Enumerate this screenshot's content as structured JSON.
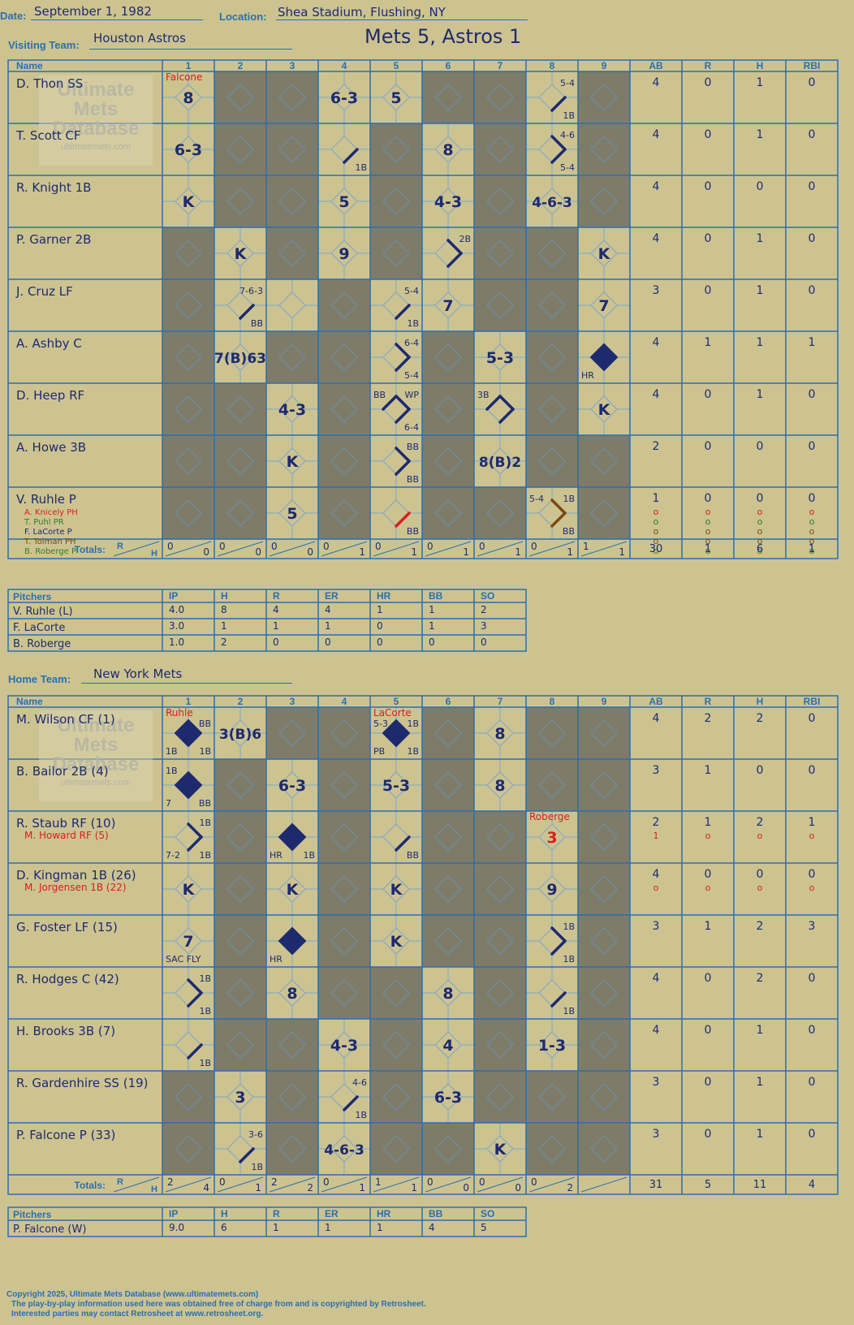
{
  "header": {
    "date_label": "Date:",
    "date": "September 1, 1982",
    "location_label": "Location:",
    "location": "Shea Stadium, Flushing, NY",
    "visiting_label": "Visiting Team:",
    "visiting_team": "Houston Astros",
    "home_label": "Home Team:",
    "home_team": "New York Mets",
    "result": "Mets 5, Astros 1"
  },
  "grid_headers": {
    "name": "Name",
    "innings": [
      "1",
      "2",
      "3",
      "4",
      "5",
      "6",
      "7",
      "8",
      "9"
    ],
    "stats": [
      "AB",
      "R",
      "H",
      "RBI"
    ],
    "totals": "Totals:",
    "r": "R",
    "h": "H"
  },
  "pitch_headers": {
    "pitchers": "Pitchers",
    "cols": [
      "IP",
      "H",
      "R",
      "ER",
      "HR",
      "BB",
      "SO"
    ]
  },
  "watermark": {
    "line1": "Ultimate",
    "line2": "Mets",
    "line3": "Database",
    "url": "ultimatemets.com"
  },
  "colors": {
    "paper": "#cdc391",
    "shade": "#7f7b69",
    "grid": "#2a6fb0",
    "ink": "#1e2a6e",
    "red": "#d81e1e",
    "green": "#2f7d2f",
    "brown": "#7a4a10"
  },
  "visitors": {
    "batters": [
      {
        "name": "D. Thon SS",
        "stats": [
          "4",
          "0",
          "1",
          "0"
        ],
        "cells": {
          "1": {
            "big": "8",
            "top": "Falcone",
            "topColor": "red"
          },
          "4": {
            "big": "6-3"
          },
          "5": {
            "big": "5"
          },
          "8": {
            "seg": [
              1
            ],
            "tr": "5-4",
            "br": "1B"
          }
        }
      },
      {
        "name": "T. Scott CF",
        "stats": [
          "4",
          "0",
          "1",
          "0"
        ],
        "cells": {
          "1": {
            "big": "6-3"
          },
          "4": {
            "seg": [
              1
            ],
            "br": "1B"
          },
          "6": {
            "big": "8"
          },
          "8": {
            "seg": [
              1,
              2
            ],
            "tr": "4-6",
            "br": "5-4"
          }
        }
      },
      {
        "name": "R. Knight 1B",
        "stats": [
          "4",
          "0",
          "0",
          "0"
        ],
        "cells": {
          "1": {
            "big": "K"
          },
          "4": {
            "big": "5"
          },
          "6": {
            "big": "4-3"
          },
          "8": {
            "big": "4-6-3"
          }
        }
      },
      {
        "name": "P. Garner 2B",
        "stats": [
          "4",
          "0",
          "1",
          "0"
        ],
        "cells": {
          "2": {
            "big": "K"
          },
          "4": {
            "big": "9"
          },
          "6": {
            "seg": [
              1,
              2
            ],
            "tr": "2B"
          },
          "9": {
            "big": "K"
          }
        }
      },
      {
        "name": "J. Cruz LF",
        "stats": [
          "3",
          "0",
          "1",
          "0"
        ],
        "cells": {
          "2": {
            "seg": [
              1
            ],
            "tr": "7-6-3",
            "br": "BB"
          },
          "5": {
            "seg": [
              1
            ],
            "tr": "5-4",
            "br": "1B"
          },
          "6": {
            "big": "7"
          },
          "9": {
            "big": "7"
          }
        }
      },
      {
        "name": "A. Ashby C",
        "stats": [
          "4",
          "1",
          "1",
          "1"
        ],
        "cells": {
          "2": {
            "big": "7(B)63"
          },
          "5": {
            "seg": [
              1,
              2
            ],
            "tr": "6-4",
            "br": "5-4"
          },
          "7": {
            "big": "5-3"
          },
          "9": {
            "run": true,
            "bl": "HR"
          }
        }
      },
      {
        "name": "D. Heep RF",
        "stats": [
          "4",
          "0",
          "1",
          "0"
        ],
        "cells": {
          "3": {
            "big": "4-3"
          },
          "5": {
            "seg": [
              1,
              2,
              3
            ],
            "tl": "BB",
            "tr": "WP",
            "br": "6-4"
          },
          "7": {
            "seg": [
              1,
              2,
              3
            ],
            "tl": "3B"
          },
          "9": {
            "big": "K"
          }
        }
      },
      {
        "name": "A. Howe 3B",
        "stats": [
          "2",
          "0",
          "0",
          "0"
        ],
        "cells": {
          "3": {
            "big": "K"
          },
          "5": {
            "seg": [
              1,
              2
            ],
            "tr": "BB",
            "br": "BB"
          },
          "7": {
            "big": "8(B)2"
          }
        }
      },
      {
        "name": "V. Ruhle P",
        "stats": [
          "1",
          "0",
          "0",
          "0"
        ],
        "subs": [
          {
            "t": "A. Knicely PH",
            "c": "red"
          },
          {
            "t": "T. Puhl PR",
            "c": "green"
          },
          {
            "t": "F. LaCorte P",
            "c": "ink"
          },
          {
            "t": "T. Tolman PH",
            "c": "brown"
          },
          {
            "t": "B. Roberge P",
            "c": "green"
          }
        ],
        "substats": [
          [
            "o",
            "o",
            "o",
            "o"
          ],
          [
            "o",
            "o",
            "o",
            "o"
          ],
          [
            "o",
            "o",
            "o",
            "o"
          ],
          [
            "o",
            "o",
            "o",
            "o"
          ],
          [
            "o",
            "o",
            "o",
            "o"
          ]
        ],
        "subColors": [
          "red",
          "green",
          "brown",
          "brown",
          "green"
        ],
        "cells": {
          "3": {
            "big": "5"
          },
          "5": {
            "seg": [
              1
            ],
            "br": "BB",
            "segColor": "red"
          },
          "8": {
            "seg": [
              1,
              2
            ],
            "tl": "5-4",
            "tr": "1B",
            "br": "BB",
            "segColor": "brown"
          }
        }
      }
    ],
    "shaded": [
      [
        2,
        3,
        6,
        7,
        9
      ],
      [
        2,
        3,
        5,
        7,
        9
      ],
      [
        2,
        3,
        5,
        7,
        9
      ],
      [
        1,
        3,
        5,
        7,
        8
      ],
      [
        1,
        4,
        7,
        8
      ],
      [
        1,
        3,
        4,
        6,
        8
      ],
      [
        1,
        2,
        4,
        6,
        8
      ],
      [
        1,
        2,
        4,
        6,
        8,
        9
      ],
      [
        1,
        2,
        4,
        6,
        7,
        9
      ]
    ],
    "totals": {
      "innings": [
        [
          "0",
          "0"
        ],
        [
          "0",
          "0"
        ],
        [
          "0",
          "0"
        ],
        [
          "0",
          "1"
        ],
        [
          "0",
          "1"
        ],
        [
          "0",
          "1"
        ],
        [
          "0",
          "1"
        ],
        [
          "0",
          "1"
        ],
        [
          "1",
          "1"
        ]
      ],
      "stats": [
        "30",
        "1",
        "6",
        "1"
      ]
    },
    "pitchers": [
      {
        "name": "V. Ruhle (L)",
        "stats": [
          "4.0",
          "8",
          "4",
          "4",
          "1",
          "1",
          "2"
        ]
      },
      {
        "name": "F. LaCorte",
        "stats": [
          "3.0",
          "1",
          "1",
          "1",
          "0",
          "1",
          "3"
        ]
      },
      {
        "name": "B. Roberge",
        "stats": [
          "1.0",
          "2",
          "0",
          "0",
          "0",
          "0",
          "0"
        ]
      }
    ]
  },
  "home": {
    "batters": [
      {
        "name": "M. Wilson CF (1)",
        "stats": [
          "4",
          "2",
          "2",
          "0"
        ],
        "cells": {
          "1": {
            "run": true,
            "top": "Ruhle",
            "topColor": "red",
            "tr": "BB",
            "bl": "1B",
            "br": "1B"
          },
          "2": {
            "big": "3(B)6"
          },
          "5": {
            "run": true,
            "top": "LaCorte",
            "topColor": "red",
            "tl": "5-3",
            "tr": "1B",
            "bl": "PB",
            "br": "1B"
          },
          "7": {
            "big": "8"
          }
        }
      },
      {
        "name": "B. Bailor 2B (4)",
        "stats": [
          "3",
          "1",
          "0",
          "0"
        ],
        "cells": {
          "1": {
            "run": true,
            "tl": "1B",
            "bl": "7",
            "br": "BB"
          },
          "3": {
            "big": "6-3"
          },
          "5": {
            "big": "5-3"
          },
          "7": {
            "big": "8"
          }
        }
      },
      {
        "name": "R. Staub RF (10)",
        "stats": [
          "2",
          "1",
          "2",
          "1"
        ],
        "subs": [
          {
            "t": "M. Howard RF (5)",
            "c": "red"
          }
        ],
        "substats": [
          [
            "1",
            "o",
            "o",
            "o"
          ]
        ],
        "subColors": [
          "red"
        ],
        "cells": {
          "1": {
            "seg": [
              1,
              2
            ],
            "tr": "1B",
            "bl": "7-2",
            "br": "1B"
          },
          "3": {
            "run": true,
            "bl": "HR",
            "br": "1B"
          },
          "5": {
            "seg": [
              1
            ],
            "br": "BB"
          },
          "8": {
            "big": "3",
            "top": "Roberge",
            "topColor": "red",
            "bigColor": "red"
          }
        }
      },
      {
        "name": "D. Kingman 1B (26)",
        "stats": [
          "4",
          "0",
          "0",
          "0"
        ],
        "subs": [
          {
            "t": "M. Jorgensen 1B (22)",
            "c": "red"
          }
        ],
        "substats": [
          [
            "o",
            "o",
            "o",
            "o"
          ]
        ],
        "subColors": [
          "red"
        ],
        "cells": {
          "1": {
            "big": "K"
          },
          "3": {
            "big": "K"
          },
          "5": {
            "big": "K"
          },
          "8": {
            "big": "9"
          }
        }
      },
      {
        "name": "G. Foster LF (15)",
        "stats": [
          "3",
          "1",
          "2",
          "3"
        ],
        "cells": {
          "1": {
            "big": "7",
            "bl": "SAC FLY"
          },
          "3": {
            "run": true,
            "bl": "HR"
          },
          "5": {
            "big": "K"
          },
          "8": {
            "seg": [
              1,
              2
            ],
            "tr": "1B",
            "br": "1B"
          }
        }
      },
      {
        "name": "R. Hodges C (42)",
        "stats": [
          "4",
          "0",
          "2",
          "0"
        ],
        "cells": {
          "1": {
            "seg": [
              1,
              2
            ],
            "tr": "1B",
            "br": "1B"
          },
          "3": {
            "big": "8"
          },
          "6": {
            "big": "8"
          },
          "8": {
            "seg": [
              1
            ],
            "br": "1B"
          }
        }
      },
      {
        "name": "H. Brooks 3B (7)",
        "stats": [
          "4",
          "0",
          "1",
          "0"
        ],
        "cells": {
          "1": {
            "seg": [
              1
            ],
            "br": "1B"
          },
          "4": {
            "big": "4-3"
          },
          "6": {
            "big": "4"
          },
          "8": {
            "big": "1-3"
          }
        }
      },
      {
        "name": "R. Gardenhire SS (19)",
        "stats": [
          "3",
          "0",
          "1",
          "0"
        ],
        "cells": {
          "2": {
            "big": "3"
          },
          "4": {
            "seg": [
              1
            ],
            "tr": "4-6",
            "br": "1B"
          },
          "6": {
            "big": "6-3"
          }
        }
      },
      {
        "name": "P. Falcone P (33)",
        "stats": [
          "3",
          "0",
          "1",
          "0"
        ],
        "cells": {
          "2": {
            "seg": [
              1
            ],
            "tr": "3-6",
            "br": "1B"
          },
          "4": {
            "big": "4-6-3"
          },
          "7": {
            "big": "K"
          }
        }
      }
    ],
    "shaded": [
      [
        3,
        4,
        6,
        8,
        9
      ],
      [
        2,
        4,
        6,
        8,
        9
      ],
      [
        2,
        4,
        6,
        7,
        9
      ],
      [
        2,
        4,
        6,
        7,
        9
      ],
      [
        2,
        4,
        6,
        7,
        9
      ],
      [
        2,
        4,
        5,
        7,
        9
      ],
      [
        2,
        3,
        5,
        7,
        9
      ],
      [
        1,
        3,
        5,
        7,
        8,
        9
      ],
      [
        1,
        3,
        5,
        6,
        8,
        9
      ]
    ],
    "totals": {
      "innings": [
        [
          "2",
          "4"
        ],
        [
          "0",
          "1"
        ],
        [
          "2",
          "2"
        ],
        [
          "0",
          "1"
        ],
        [
          "1",
          "1"
        ],
        [
          "0",
          "0"
        ],
        [
          "0",
          "0"
        ],
        [
          "0",
          "2"
        ],
        [
          "",
          ""
        ]
      ],
      "stats": [
        "31",
        "5",
        "11",
        "4"
      ]
    },
    "pitchers": [
      {
        "name": "P. Falcone (W)",
        "stats": [
          "9.0",
          "6",
          "1",
          "1",
          "1",
          "4",
          "5"
        ]
      }
    ]
  },
  "footer": {
    "line1": "Copyright 2025, Ultimate Mets Database (www.ultimatemets.com)",
    "line2": "The play-by-play information used here was obtained free of charge from and is copyrighted by Retrosheet.",
    "line3": "Interested parties may contact Retrosheet at www.retrosheet.org."
  }
}
